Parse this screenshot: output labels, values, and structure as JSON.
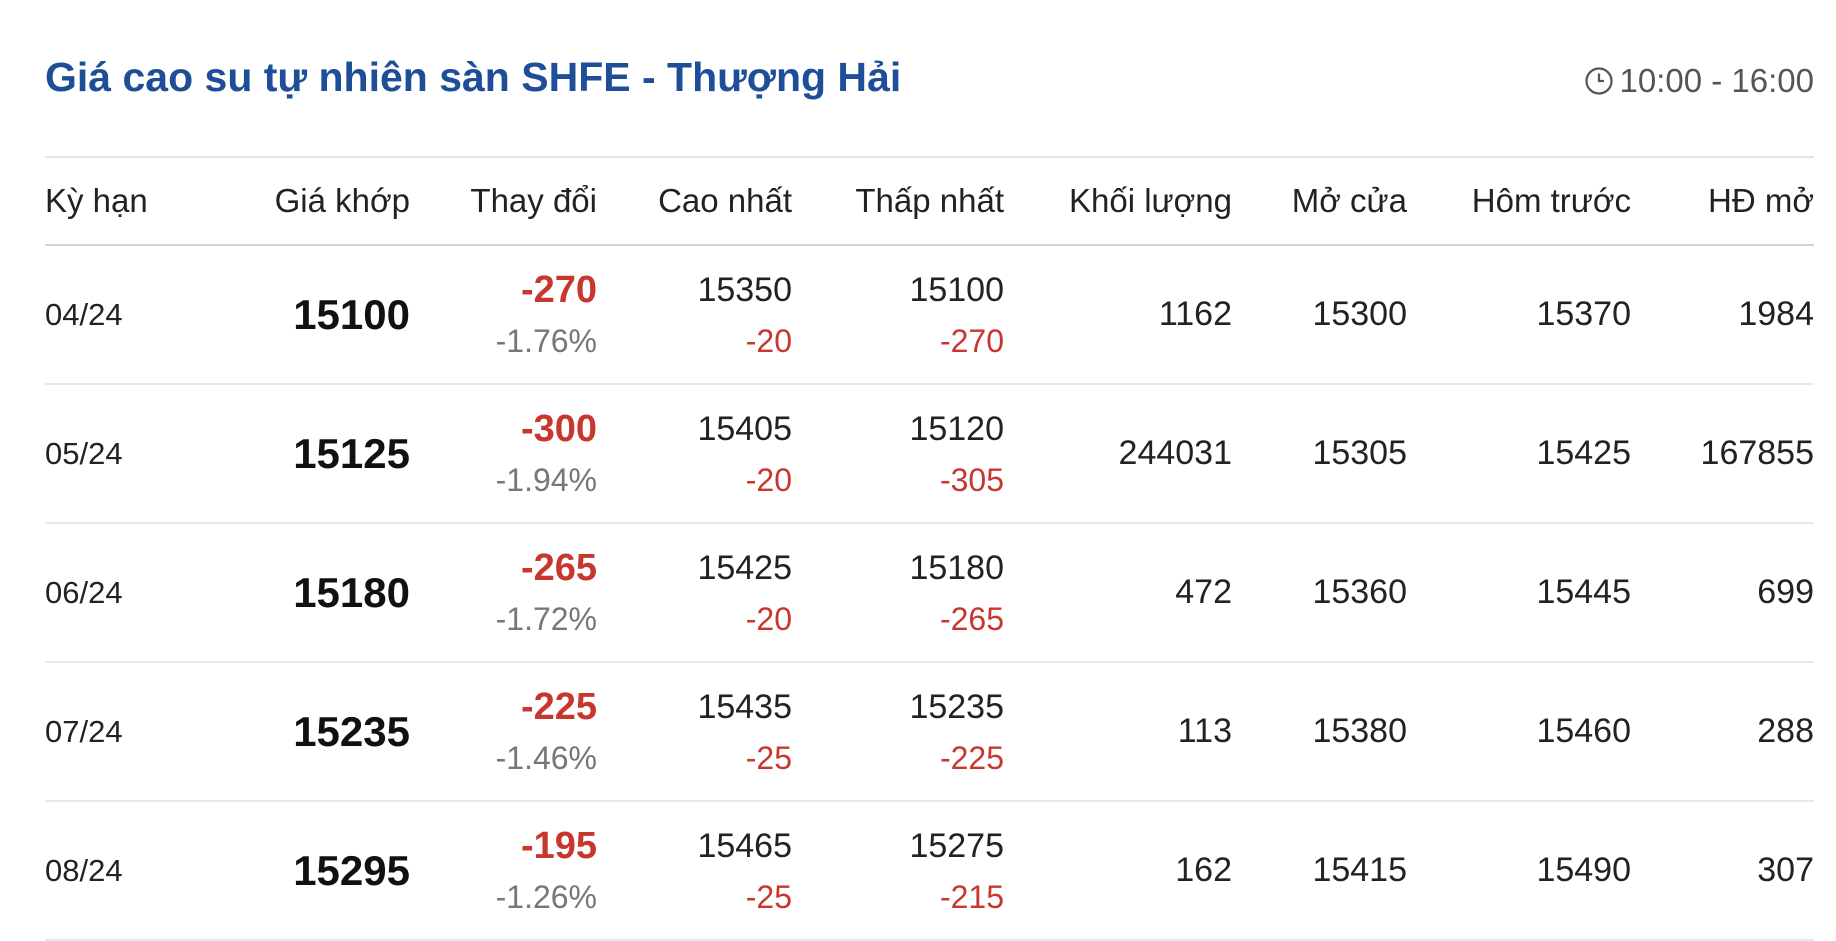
{
  "title": "Giá cao su tự nhiên sàn SHFE - Thượng Hải",
  "hours": "10:00 - 16:00",
  "icons": {
    "clock": "clock-icon"
  },
  "colors": {
    "title": "#1f4e99",
    "negative": "#c8372d"
  },
  "headers": [
    "Kỳ hạn",
    "Giá khớp",
    "Thay đổi",
    "Cao nhất",
    "Thấp nhất",
    "Khối lượng",
    "Mở cửa",
    "Hôm trước",
    "HĐ mở"
  ],
  "rows": [
    {
      "term": "04/24",
      "price": "15100",
      "change": "-270",
      "pct": "-1.76%",
      "high": "15350",
      "high_chg": "-20",
      "low": "15100",
      "low_chg": "-270",
      "volume": "1162",
      "open": "15300",
      "prev": "15370",
      "oi": "1984"
    },
    {
      "term": "05/24",
      "price": "15125",
      "change": "-300",
      "pct": "-1.94%",
      "high": "15405",
      "high_chg": "-20",
      "low": "15120",
      "low_chg": "-305",
      "volume": "244031",
      "open": "15305",
      "prev": "15425",
      "oi": "167855"
    },
    {
      "term": "06/24",
      "price": "15180",
      "change": "-265",
      "pct": "-1.72%",
      "high": "15425",
      "high_chg": "-20",
      "low": "15180",
      "low_chg": "-265",
      "volume": "472",
      "open": "15360",
      "prev": "15445",
      "oi": "699"
    },
    {
      "term": "07/24",
      "price": "15235",
      "change": "-225",
      "pct": "-1.46%",
      "high": "15435",
      "high_chg": "-25",
      "low": "15235",
      "low_chg": "-225",
      "volume": "113",
      "open": "15380",
      "prev": "15460",
      "oi": "288"
    },
    {
      "term": "08/24",
      "price": "15295",
      "change": "-195",
      "pct": "-1.26%",
      "high": "15465",
      "high_chg": "-25",
      "low": "15275",
      "low_chg": "-215",
      "volume": "162",
      "open": "15415",
      "prev": "15490",
      "oi": "307"
    }
  ]
}
